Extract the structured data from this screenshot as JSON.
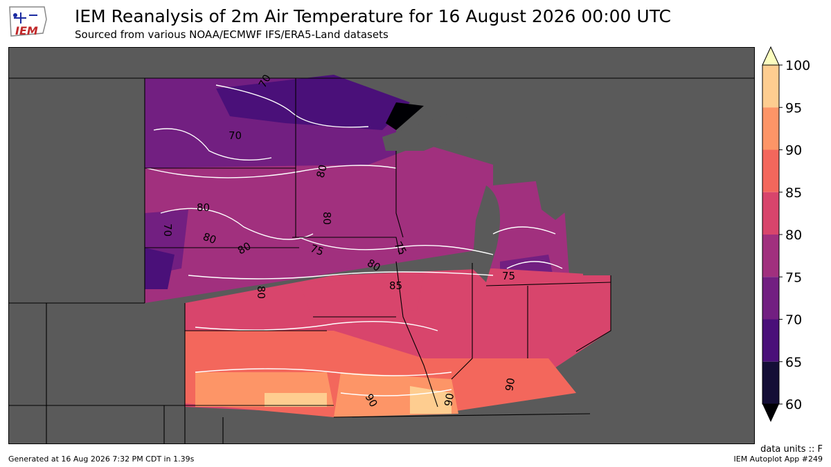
{
  "header": {
    "logo_text": "IEM",
    "title": "IEM Reanalysis of 2m Air Temperature for 16 August 2026 00:00 UTC",
    "subtitle": "Sourced from various NOAA/ECMWF IFS/ERA5-Land datasets"
  },
  "map": {
    "variable": "2m Air Temperature",
    "background_color": "#5a5a5a",
    "contour_color": "#ffffff",
    "contour_labels": [
      "70",
      "70",
      "70",
      "80",
      "80",
      "80",
      "80",
      "80",
      "80",
      "75",
      "80",
      "85",
      "90",
      "90",
      "90",
      "75",
      "75"
    ]
  },
  "colorbar": {
    "levels": [
      "100",
      "95",
      "90",
      "85",
      "80",
      "75",
      "70",
      "65",
      "60"
    ],
    "colors": [
      "#fecd90",
      "#fd9567",
      "#f3675c",
      "#d8456c",
      "#a1307e",
      "#721f81",
      "#4a1079",
      "#140e36",
      "#000004"
    ],
    "overflow_color": "#fcfdbf",
    "underflow_color": "#000004"
  },
  "footer": {
    "units": "data units :: F",
    "generated": "Generated at 16 Aug 2026 7:32 PM CDT in 1.39s",
    "app": "IEM Autoplot App #249"
  }
}
